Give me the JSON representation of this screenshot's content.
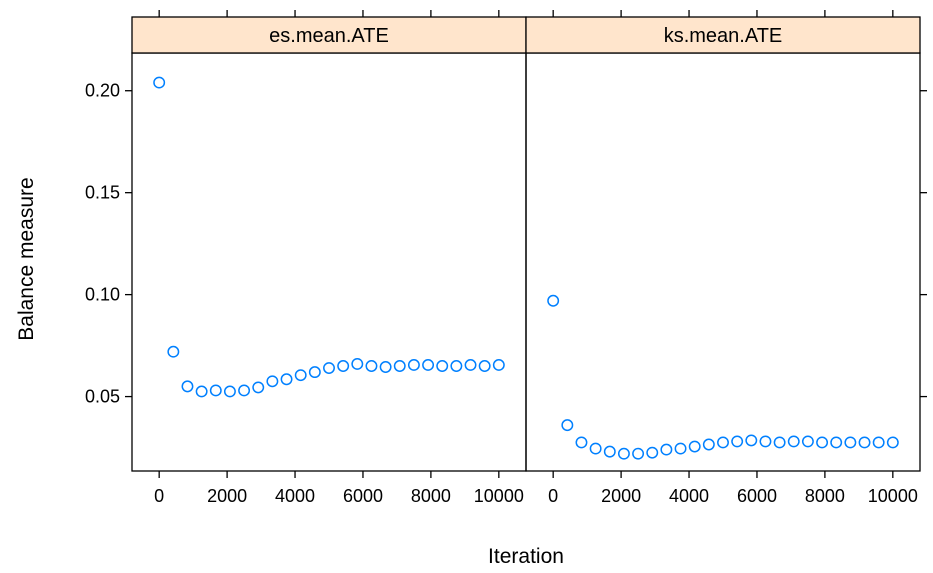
{
  "chart_data": {
    "type": "scatter",
    "xlabel": "Iteration",
    "ylabel": "Balance measure",
    "xlim": [
      -800,
      10800
    ],
    "ylim": [
      0.0135,
      0.2185
    ],
    "x_ticks": [
      0,
      2000,
      4000,
      6000,
      8000,
      10000
    ],
    "x_tick_labels": [
      "0",
      "2000",
      "4000",
      "6000",
      "8000",
      "10000"
    ],
    "y_ticks": [
      0.05,
      0.1,
      0.15,
      0.2
    ],
    "y_tick_labels": [
      "0.05",
      "0.10",
      "0.15",
      "0.20"
    ],
    "grid": false,
    "point_color": "#0080ff",
    "strip_color": "#ffe5cc",
    "panels": [
      {
        "strip": "es.mean.ATE",
        "x": [
          0,
          417,
          833,
          1250,
          1667,
          2083,
          2500,
          2917,
          3333,
          3750,
          4167,
          4583,
          5000,
          5417,
          5833,
          6250,
          6667,
          7083,
          7500,
          7917,
          8333,
          8750,
          9167,
          9583,
          10000
        ],
        "y": [
          0.204,
          0.072,
          0.055,
          0.0525,
          0.053,
          0.0525,
          0.053,
          0.0545,
          0.0575,
          0.0585,
          0.0605,
          0.062,
          0.064,
          0.065,
          0.066,
          0.065,
          0.0645,
          0.065,
          0.0655,
          0.0655,
          0.065,
          0.065,
          0.0655,
          0.065,
          0.0655
        ]
      },
      {
        "strip": "ks.mean.ATE",
        "x": [
          0,
          417,
          833,
          1250,
          1667,
          2083,
          2500,
          2917,
          3333,
          3750,
          4167,
          4583,
          5000,
          5417,
          5833,
          6250,
          6667,
          7083,
          7500,
          7917,
          8333,
          8750,
          9167,
          9583,
          10000
        ],
        "y": [
          0.097,
          0.036,
          0.0275,
          0.0245,
          0.023,
          0.022,
          0.022,
          0.0225,
          0.024,
          0.0245,
          0.0255,
          0.0265,
          0.0275,
          0.028,
          0.0285,
          0.028,
          0.0275,
          0.028,
          0.028,
          0.0275,
          0.0275,
          0.0275,
          0.0275,
          0.0275,
          0.0275
        ]
      }
    ]
  }
}
